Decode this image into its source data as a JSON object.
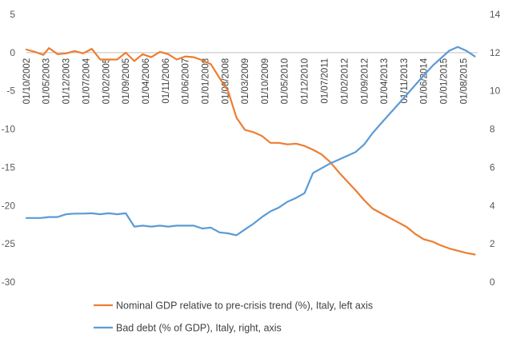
{
  "chart_data": {
    "type": "line",
    "title": "",
    "x_tick_labels": [
      "01/10/2002",
      "01/05/2003",
      "01/12/2003",
      "01/07/2004",
      "01/02/2005",
      "01/09/2005",
      "01/04/2006",
      "01/11/2006",
      "01/06/2007",
      "01/01/2008",
      "01/08/2008",
      "01/03/2009",
      "01/10/2009",
      "01/05/2010",
      "01/12/2010",
      "01/07/2011",
      "01/02/2012",
      "01/09/2012",
      "01/04/2013",
      "01/11/2013",
      "01/06/2014",
      "01/01/2015",
      "01/08/2015"
    ],
    "y_left": {
      "ticks": [
        5,
        0,
        -5,
        -10,
        -15,
        -20,
        -25,
        -30
      ],
      "min": -30,
      "max": 5
    },
    "y_right": {
      "ticks": [
        14,
        12,
        10,
        8,
        6,
        4,
        2,
        0
      ],
      "min": 0,
      "max": 14
    },
    "legend_position": "bottom",
    "grid": false,
    "series": [
      {
        "name": "Nominal GDP relative to pre-crisis trend (%), Italy, left axis",
        "axis": "left",
        "color": "#ED7D31",
        "points": [
          [
            "2002-10",
            0.4
          ],
          [
            "2003-01",
            0.1
          ],
          [
            "2003-04",
            -0.3
          ],
          [
            "2003-06",
            0.6
          ],
          [
            "2003-09",
            -0.2
          ],
          [
            "2003-12",
            -0.1
          ],
          [
            "2004-03",
            0.2
          ],
          [
            "2004-06",
            -0.1
          ],
          [
            "2004-09",
            0.5
          ],
          [
            "2004-12",
            -0.9
          ],
          [
            "2005-03",
            -0.9
          ],
          [
            "2005-06",
            -0.9
          ],
          [
            "2005-09",
            0.0
          ],
          [
            "2005-12",
            -1.1
          ],
          [
            "2006-03",
            -0.2
          ],
          [
            "2006-06",
            -0.6
          ],
          [
            "2006-09",
            0.1
          ],
          [
            "2006-12",
            -0.2
          ],
          [
            "2007-03",
            -0.9
          ],
          [
            "2007-06",
            -0.5
          ],
          [
            "2007-09",
            -0.6
          ],
          [
            "2007-12",
            -1.0
          ],
          [
            "2008-03",
            -1.5
          ],
          [
            "2008-06",
            -3.3
          ],
          [
            "2008-09",
            -5.0
          ],
          [
            "2008-12",
            -8.5
          ],
          [
            "2009-03",
            -10.1
          ],
          [
            "2009-06",
            -10.4
          ],
          [
            "2009-09",
            -10.9
          ],
          [
            "2009-12",
            -11.8
          ],
          [
            "2010-03",
            -11.8
          ],
          [
            "2010-06",
            -12.0
          ],
          [
            "2010-09",
            -11.9
          ],
          [
            "2010-12",
            -12.2
          ],
          [
            "2011-03",
            -12.7
          ],
          [
            "2011-06",
            -13.3
          ],
          [
            "2011-09",
            -14.3
          ],
          [
            "2011-12",
            -15.6
          ],
          [
            "2012-03",
            -16.8
          ],
          [
            "2012-06",
            -18.0
          ],
          [
            "2012-09",
            -19.3
          ],
          [
            "2012-12",
            -20.4
          ],
          [
            "2013-03",
            -21.0
          ],
          [
            "2013-06",
            -21.6
          ],
          [
            "2013-09",
            -22.2
          ],
          [
            "2013-12",
            -22.8
          ],
          [
            "2014-03",
            -23.7
          ],
          [
            "2014-06",
            -24.4
          ],
          [
            "2014-09",
            -24.7
          ],
          [
            "2014-12",
            -25.2
          ],
          [
            "2015-03",
            -25.6
          ],
          [
            "2015-06",
            -25.9
          ],
          [
            "2015-09",
            -26.2
          ],
          [
            "2015-12",
            -26.4
          ]
        ]
      },
      {
        "name": "Bad debt (% of GDP), Italy, right, axis",
        "axis": "right",
        "color": "#5B9BD5",
        "points": [
          [
            "2002-10",
            3.35
          ],
          [
            "2003-03",
            3.35
          ],
          [
            "2003-06",
            3.4
          ],
          [
            "2003-09",
            3.4
          ],
          [
            "2003-12",
            3.55
          ],
          [
            "2004-03",
            3.58
          ],
          [
            "2004-06",
            3.58
          ],
          [
            "2004-09",
            3.6
          ],
          [
            "2004-12",
            3.55
          ],
          [
            "2005-03",
            3.6
          ],
          [
            "2005-06",
            3.55
          ],
          [
            "2005-09",
            3.6
          ],
          [
            "2005-12",
            2.9
          ],
          [
            "2006-03",
            2.95
          ],
          [
            "2006-06",
            2.9
          ],
          [
            "2006-09",
            2.95
          ],
          [
            "2006-12",
            2.9
          ],
          [
            "2007-03",
            2.95
          ],
          [
            "2007-06",
            2.95
          ],
          [
            "2007-09",
            2.95
          ],
          [
            "2007-12",
            2.8
          ],
          [
            "2008-03",
            2.85
          ],
          [
            "2008-06",
            2.6
          ],
          [
            "2008-09",
            2.55
          ],
          [
            "2008-12",
            2.45
          ],
          [
            "2009-03",
            2.75
          ],
          [
            "2009-06",
            3.05
          ],
          [
            "2009-09",
            3.4
          ],
          [
            "2009-12",
            3.7
          ],
          [
            "2010-03",
            3.9
          ],
          [
            "2010-06",
            4.2
          ],
          [
            "2010-09",
            4.4
          ],
          [
            "2010-12",
            4.65
          ],
          [
            "2011-03",
            5.7
          ],
          [
            "2011-06",
            5.95
          ],
          [
            "2011-09",
            6.2
          ],
          [
            "2011-12",
            6.4
          ],
          [
            "2012-03",
            6.6
          ],
          [
            "2012-06",
            6.8
          ],
          [
            "2012-09",
            7.2
          ],
          [
            "2012-12",
            7.8
          ],
          [
            "2013-03",
            8.3
          ],
          [
            "2013-06",
            8.8
          ],
          [
            "2013-09",
            9.3
          ],
          [
            "2013-12",
            9.8
          ],
          [
            "2014-03",
            10.3
          ],
          [
            "2014-06",
            10.8
          ],
          [
            "2014-09",
            11.3
          ],
          [
            "2014-12",
            11.7
          ],
          [
            "2015-03",
            12.1
          ],
          [
            "2015-06",
            12.3
          ],
          [
            "2015-09",
            12.1
          ],
          [
            "2015-12",
            11.8
          ]
        ]
      }
    ]
  }
}
